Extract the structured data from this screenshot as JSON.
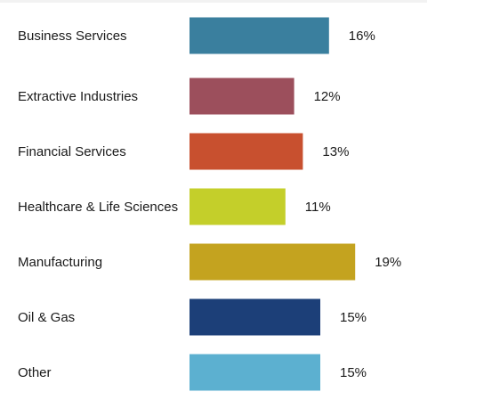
{
  "chart_data": {
    "type": "bar",
    "orientation": "horizontal",
    "categories": [
      "Business Services",
      "Extractive Industries",
      "Financial Services",
      "Healthcare & Life Sciences",
      "Manufacturing",
      "Oil & Gas",
      "Other"
    ],
    "values": [
      16,
      12,
      13,
      11,
      19,
      15,
      15
    ],
    "value_labels": [
      "16%",
      "12%",
      "13%",
      "11%",
      "19%",
      "15%",
      "15%"
    ],
    "colors": [
      "#3a7f9e",
      "#9c4f5c",
      "#c8502f",
      "#c4cf2a",
      "#c4a31f",
      "#1c3f78",
      "#5cb0d0"
    ],
    "title": "",
    "xlabel": "",
    "ylabel": "",
    "unit": "%",
    "grid": false,
    "legend": "none"
  }
}
